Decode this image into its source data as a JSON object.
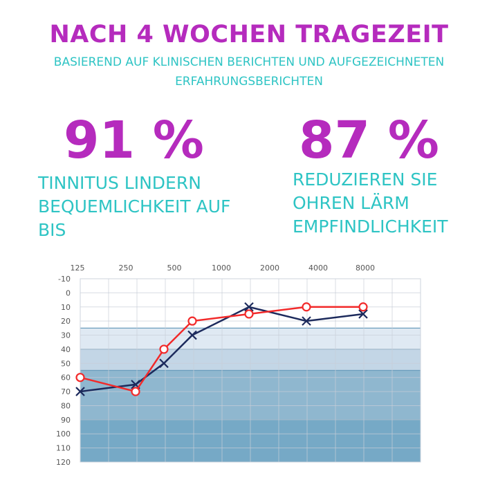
{
  "header": {
    "title": "NACH 4 WOCHEN TRAGEZEIT",
    "subtitle_line1": "BASIEREND AUF KLINISCHEN BERICHTEN UND AUFGEZEICHNETEN",
    "subtitle_line2": "ERFAHRUNGSBERICHTEN"
  },
  "stats": [
    {
      "value": "91 %",
      "lines": [
        "TINNITUS LINDERN",
        "BEQUEMLICHKEIT AUF",
        "BIS"
      ]
    },
    {
      "value": "87 %",
      "lines": [
        "REDUZIEREN SIE",
        "OHREN LÄRM",
        "EMPFINDLICHKEIT"
      ]
    }
  ],
  "chart_data": {
    "type": "line",
    "title": "",
    "xlabel": "",
    "ylabel": "",
    "x_tick_labels": [
      "125",
      "250",
      "500",
      "1000",
      "2000",
      "4000",
      "8000"
    ],
    "y_tick_labels": [
      "-10",
      "0",
      "10",
      "20",
      "30",
      "40",
      "50",
      "60",
      "70",
      "80",
      "90",
      "100",
      "110",
      "120"
    ],
    "ylim": [
      -10,
      120
    ],
    "y_inverted": true,
    "grid": true,
    "x": [
      "125",
      "250",
      "500",
      "1000",
      "2000",
      "4000",
      "8000"
    ],
    "series": [
      {
        "marker": "circle",
        "color": "#f22a2a",
        "values": [
          60,
          70,
          40,
          20,
          15,
          10,
          10
        ]
      },
      {
        "marker": "x",
        "color": "#1c2a5c",
        "values": [
          70,
          65,
          50,
          30,
          10,
          20,
          15
        ]
      }
    ],
    "bands": [
      {
        "from": -10,
        "to": 25,
        "color": "#ffffff"
      },
      {
        "from": 25,
        "to": 40,
        "color": "#dfe9f3"
      },
      {
        "from": 40,
        "to": 55,
        "color": "#c3d6e6"
      },
      {
        "from": 55,
        "to": 90,
        "color": "#8fb7cf"
      },
      {
        "from": 90,
        "to": 120,
        "color": "#76a9c6"
      }
    ]
  }
}
